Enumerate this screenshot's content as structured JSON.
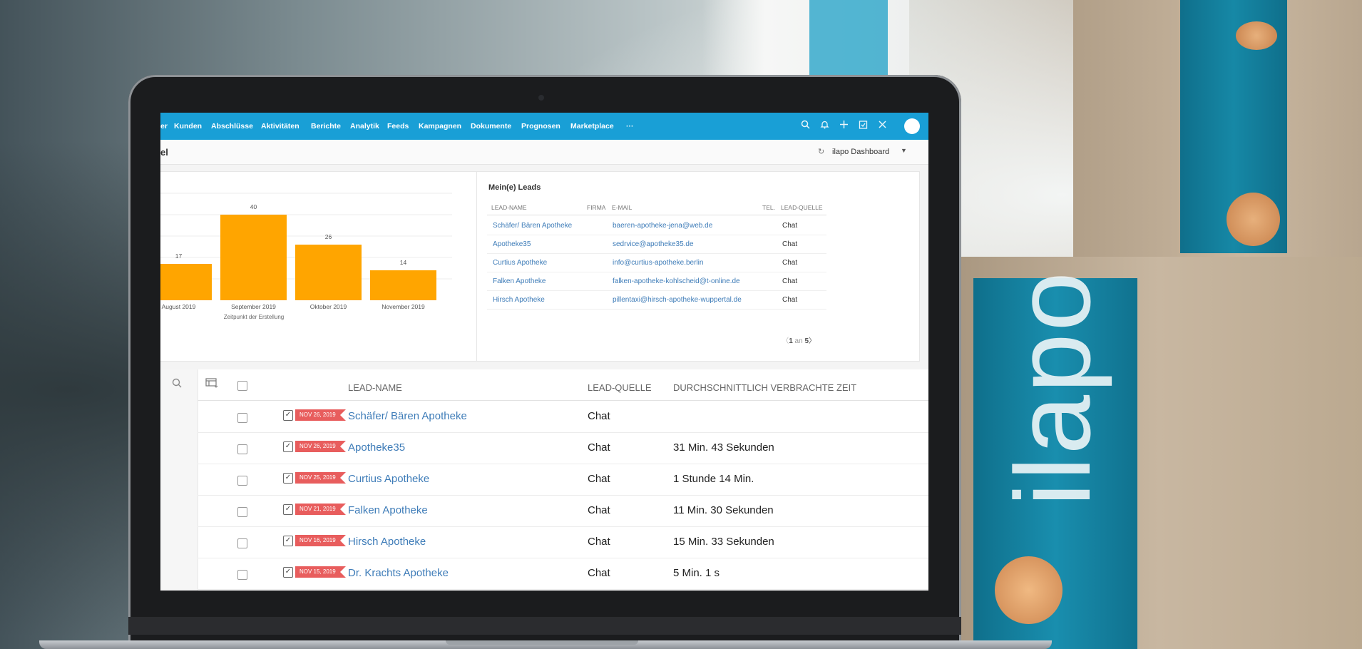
{
  "background": {
    "box_brand": "ilapo"
  },
  "nav": {
    "items": [
      "er",
      "Kunden",
      "Abschlüsse",
      "Aktivitäten",
      "Berichte",
      "Analytik",
      "Feeds",
      "Kampagnen",
      "Dokumente",
      "Prognosen",
      "Marketplace",
      "···"
    ],
    "icons": [
      "search-icon",
      "bell-icon",
      "plus-icon",
      "calendar-check-icon",
      "tools-icon",
      "avatar"
    ]
  },
  "subbar": {
    "page_title": "el",
    "dashboard": "ilapo Dashboard"
  },
  "chart_data": {
    "type": "bar",
    "categories": [
      "August 2019",
      "September 2019",
      "Oktober 2019",
      "November 2019"
    ],
    "values": [
      17,
      40,
      26,
      14
    ],
    "xlabel": "Zeitpunkt der Erstellung",
    "ylim": [
      0,
      50
    ],
    "color": "#ffa500"
  },
  "leads_widget": {
    "title": "Mein(e) Leads",
    "headers": {
      "name": "LEAD-NAME",
      "firma": "FIRMA",
      "email": "E-MAIL",
      "tel": "TEL.",
      "quelle": "LEAD-QUELLE"
    },
    "rows": [
      {
        "name": "Schäfer/ Bären Apotheke",
        "email": "baeren-apotheke-jena@web.de",
        "quelle": "Chat"
      },
      {
        "name": "Apotheke35",
        "email": "sedrvice@apotheke35.de",
        "quelle": "Chat"
      },
      {
        "name": "Curtius Apotheke",
        "email": "info@curtius-apotheke.berlin",
        "quelle": "Chat"
      },
      {
        "name": "Falken Apotheke",
        "email": "falken-apotheke-kohlscheid@t-online.de",
        "quelle": "Chat"
      },
      {
        "name": "Hirsch Apotheke",
        "email": "pillentaxi@hirsch-apotheke-wuppertal.de",
        "quelle": "Chat"
      }
    ],
    "pager": {
      "current": "1",
      "sep": "an",
      "total": "5"
    }
  },
  "list": {
    "headers": {
      "name": "LEAD-NAME",
      "quelle": "LEAD-QUELLE",
      "zeit": "DURCHSCHNITTLICH VERBRACHTE ZEIT"
    },
    "rows": [
      {
        "date": "NOV 26, 2019",
        "name": "Schäfer/ Bären Apotheke",
        "quelle": "Chat",
        "zeit": ""
      },
      {
        "date": "NOV 26, 2019",
        "name": "Apotheke35",
        "quelle": "Chat",
        "zeit": "31 Min. 43 Sekunden"
      },
      {
        "date": "NOV 25, 2019",
        "name": "Curtius Apotheke",
        "quelle": "Chat",
        "zeit": "1 Stunde 14 Min."
      },
      {
        "date": "NOV 21, 2019",
        "name": "Falken Apotheke",
        "quelle": "Chat",
        "zeit": "11 Min. 30 Sekunden"
      },
      {
        "date": "NOV 16, 2019",
        "name": "Hirsch Apotheke",
        "quelle": "Chat",
        "zeit": "15 Min. 33 Sekunden"
      },
      {
        "date": "NOV 15, 2019",
        "name": "Dr. Krachts Apotheke",
        "quelle": "Chat",
        "zeit": "5 Min. 1 s"
      }
    ]
  }
}
